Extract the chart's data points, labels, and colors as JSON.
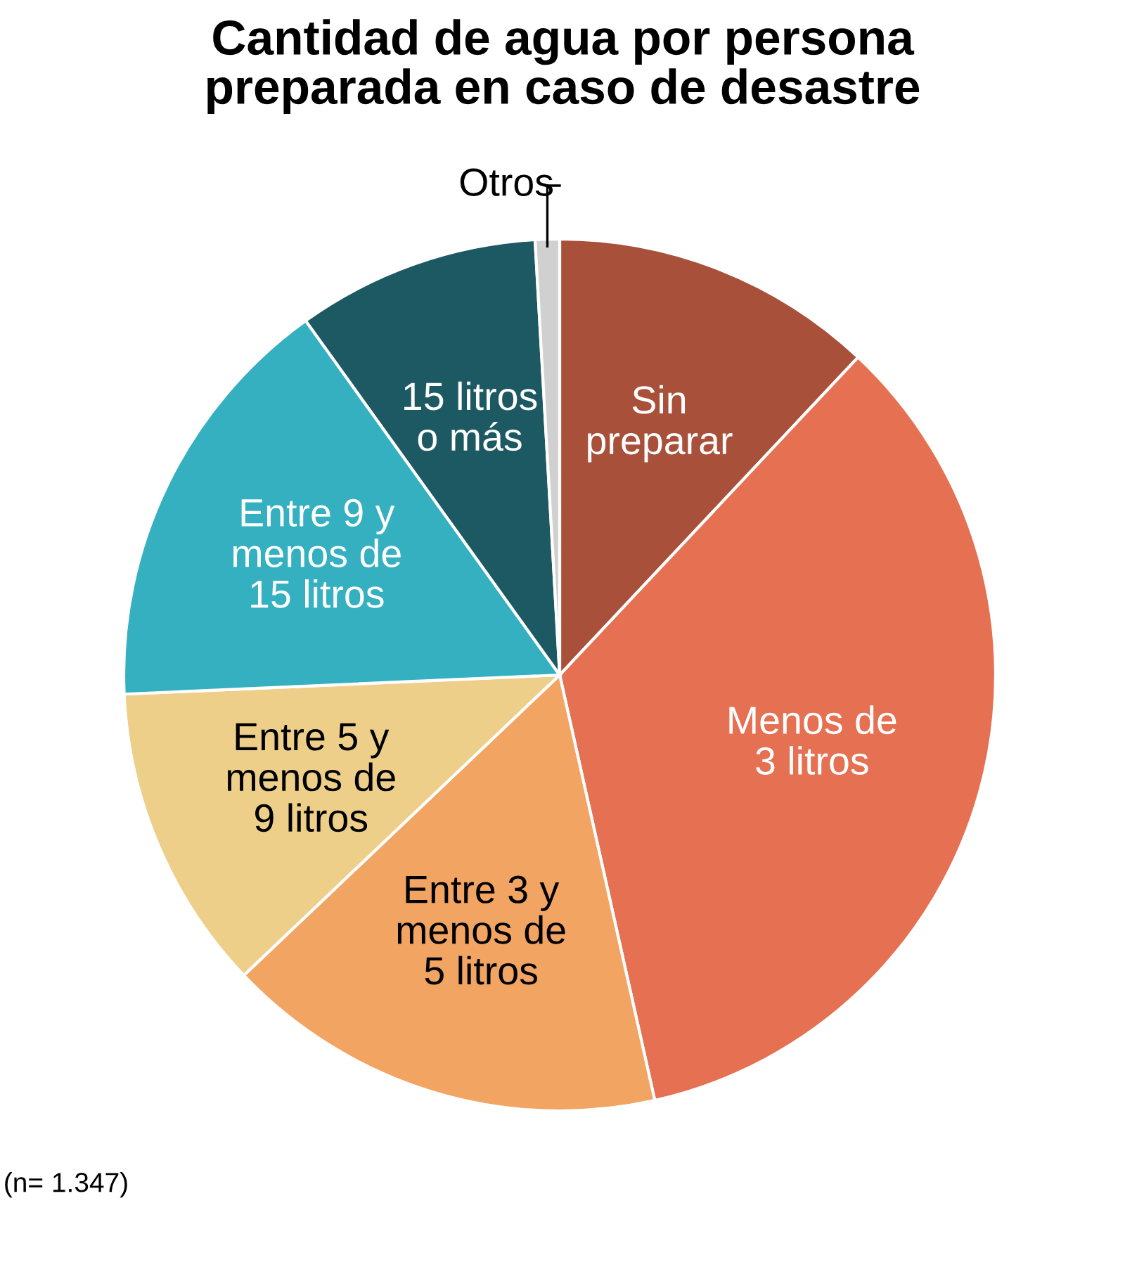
{
  "chart_data": {
    "type": "pie",
    "title": "Cantidad de agua por persona\npreparada en caso de desastre",
    "categories": [
      "Sin\npreparar",
      "Menos de\n3 litros",
      "Entre 3 y\nmenos de\n5 litros",
      "Entre 5 y\nmenos de\n9 litros",
      "Entre 9 y\nmenos de\n15 litros",
      "15 litros\no más",
      "Otros"
    ],
    "values": [
      12.0,
      34.5,
      16.4,
      11.4,
      15.8,
      9.0,
      0.9
    ],
    "colors": [
      "#a9503a",
      "#e57052",
      "#f2a463",
      "#edcf8a",
      "#35b0c0",
      "#1d5962",
      "#d0d0d0"
    ],
    "annotations": [
      "(n= 1.347)"
    ],
    "legend": false
  }
}
